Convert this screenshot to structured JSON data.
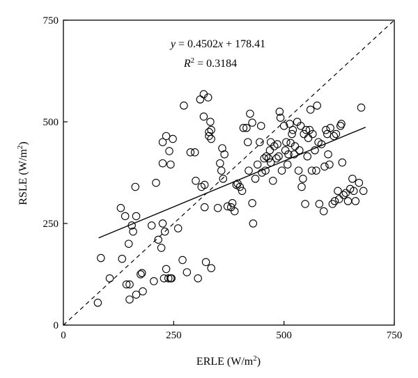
{
  "chart_data": {
    "type": "scatter",
    "xlabel_main": "ERLE (W/m",
    "xlabel_sup": "2",
    "xlabel_end": ")",
    "ylabel_main": "RSLE (W/m",
    "ylabel_sup": "2",
    "ylabel_end": ")",
    "xlim": [
      0,
      750
    ],
    "ylim": [
      0,
      750
    ],
    "xticks": [
      0,
      250,
      500,
      750
    ],
    "yticks": [
      0,
      250,
      500,
      750
    ],
    "x_tick_labels": [
      "0",
      "250",
      "500",
      "750"
    ],
    "y_tick_labels": [
      "0",
      "250",
      "500",
      "750"
    ],
    "grid": false,
    "annotation": {
      "equation_y": "y",
      "equation_eq": " = 0.4502",
      "equation_x": "x",
      "equation_rest": " + 178.41",
      "r2_r": "R",
      "r2_sup": "2",
      "r2_rest": " = 0.3184"
    },
    "regression": {
      "slope": 0.4502,
      "intercept": 178.41,
      "x_range": [
        80,
        685
      ]
    },
    "reference_line": {
      "style": "dashed",
      "from": [
        0,
        0
      ],
      "to": [
        750,
        750
      ]
    },
    "points": [
      [
        78,
        55
      ],
      [
        85,
        165
      ],
      [
        105,
        115
      ],
      [
        130,
        288
      ],
      [
        133,
        163
      ],
      [
        140,
        268
      ],
      [
        143,
        100
      ],
      [
        148,
        200
      ],
      [
        150,
        100
      ],
      [
        150,
        63
      ],
      [
        155,
        245
      ],
      [
        158,
        230
      ],
      [
        163,
        340
      ],
      [
        165,
        268
      ],
      [
        165,
        75
      ],
      [
        175,
        125
      ],
      [
        180,
        83
      ],
      [
        178,
        128
      ],
      [
        200,
        245
      ],
      [
        205,
        108
      ],
      [
        210,
        350
      ],
      [
        215,
        210
      ],
      [
        222,
        190
      ],
      [
        225,
        450
      ],
      [
        225,
        398
      ],
      [
        225,
        250
      ],
      [
        228,
        115
      ],
      [
        230,
        230
      ],
      [
        233,
        465
      ],
      [
        233,
        138
      ],
      [
        238,
        115
      ],
      [
        240,
        428
      ],
      [
        243,
        395
      ],
      [
        243,
        115
      ],
      [
        245,
        115
      ],
      [
        248,
        458
      ],
      [
        260,
        238
      ],
      [
        270,
        160
      ],
      [
        273,
        540
      ],
      [
        280,
        130
      ],
      [
        288,
        425
      ],
      [
        298,
        425
      ],
      [
        300,
        355
      ],
      [
        305,
        115
      ],
      [
        310,
        555
      ],
      [
        313,
        340
      ],
      [
        318,
        568
      ],
      [
        318,
        513
      ],
      [
        320,
        290
      ],
      [
        320,
        345
      ],
      [
        323,
        155
      ],
      [
        328,
        560
      ],
      [
        330,
        465
      ],
      [
        330,
        475
      ],
      [
        333,
        500
      ],
      [
        335,
        480
      ],
      [
        335,
        458
      ],
      [
        335,
        140
      ],
      [
        350,
        288
      ],
      [
        355,
        398
      ],
      [
        358,
        380
      ],
      [
        360,
        435
      ],
      [
        362,
        360
      ],
      [
        365,
        420
      ],
      [
        372,
        292
      ],
      [
        380,
        290
      ],
      [
        383,
        300
      ],
      [
        388,
        280
      ],
      [
        392,
        345
      ],
      [
        395,
        348
      ],
      [
        400,
        340
      ],
      [
        405,
        330
      ],
      [
        408,
        485
      ],
      [
        415,
        485
      ],
      [
        418,
        450
      ],
      [
        420,
        380
      ],
      [
        423,
        520
      ],
      [
        428,
        498
      ],
      [
        428,
        300
      ],
      [
        430,
        250
      ],
      [
        435,
        360
      ],
      [
        440,
        395
      ],
      [
        445,
        450
      ],
      [
        448,
        490
      ],
      [
        450,
        375
      ],
      [
        455,
        410
      ],
      [
        458,
        380
      ],
      [
        460,
        415
      ],
      [
        465,
        410
      ],
      [
        468,
        430
      ],
      [
        470,
        450
      ],
      [
        470,
        400
      ],
      [
        475,
        355
      ],
      [
        478,
        440
      ],
      [
        483,
        410
      ],
      [
        485,
        445
      ],
      [
        488,
        415
      ],
      [
        490,
        525
      ],
      [
        492,
        510
      ],
      [
        495,
        380
      ],
      [
        500,
        490
      ],
      [
        503,
        430
      ],
      [
        505,
        450
      ],
      [
        508,
        395
      ],
      [
        510,
        420
      ],
      [
        513,
        495
      ],
      [
        515,
        448
      ],
      [
        518,
        470
      ],
      [
        520,
        480
      ],
      [
        523,
        420
      ],
      [
        525,
        440
      ],
      [
        530,
        500
      ],
      [
        533,
        380
      ],
      [
        535,
        430
      ],
      [
        538,
        490
      ],
      [
        540,
        340
      ],
      [
        543,
        360
      ],
      [
        545,
        470
      ],
      [
        548,
        298
      ],
      [
        550,
        480
      ],
      [
        553,
        415
      ],
      [
        555,
        460
      ],
      [
        558,
        480
      ],
      [
        560,
        530
      ],
      [
        563,
        380
      ],
      [
        565,
        470
      ],
      [
        570,
        430
      ],
      [
        573,
        380
      ],
      [
        575,
        540
      ],
      [
        578,
        450
      ],
      [
        580,
        298
      ],
      [
        585,
        445
      ],
      [
        590,
        280
      ],
      [
        592,
        390
      ],
      [
        595,
        480
      ],
      [
        598,
        470
      ],
      [
        600,
        420
      ],
      [
        603,
        395
      ],
      [
        605,
        485
      ],
      [
        610,
        298
      ],
      [
        613,
        465
      ],
      [
        615,
        305
      ],
      [
        618,
        470
      ],
      [
        622,
        330
      ],
      [
        625,
        310
      ],
      [
        628,
        490
      ],
      [
        630,
        495
      ],
      [
        632,
        400
      ],
      [
        635,
        320
      ],
      [
        640,
        325
      ],
      [
        645,
        305
      ],
      [
        650,
        335
      ],
      [
        655,
        360
      ],
      [
        658,
        330
      ],
      [
        662,
        305
      ],
      [
        670,
        350
      ],
      [
        675,
        535
      ],
      [
        680,
        330
      ]
    ]
  }
}
